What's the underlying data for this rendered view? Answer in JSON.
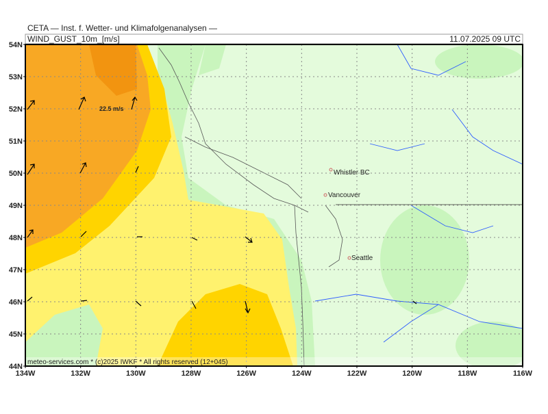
{
  "header": {
    "institute": "CETA — Inst. f. Wetter- und Klimafolgenanalysen —",
    "parameter": "WIND_GUST_10m_[m/s]",
    "valid_time": "11.07.2025 09 UTC"
  },
  "map": {
    "lat_labels": [
      "54N",
      "53N",
      "52N",
      "51N",
      "50N",
      "49N",
      "48N",
      "47N",
      "46N",
      "45N",
      "44N"
    ],
    "lon_labels": [
      "134W",
      "132W",
      "130W",
      "128W",
      "126W",
      "124W",
      "122W",
      "120W",
      "118W",
      "116W"
    ],
    "places": [
      "Whistler BC",
      "Vancouver",
      "Seattle"
    ],
    "contour_label": "22.5 m/s",
    "footer": "meteo-services.com * (c)2025 IWKF * All rights reserved (12+045)"
  }
}
